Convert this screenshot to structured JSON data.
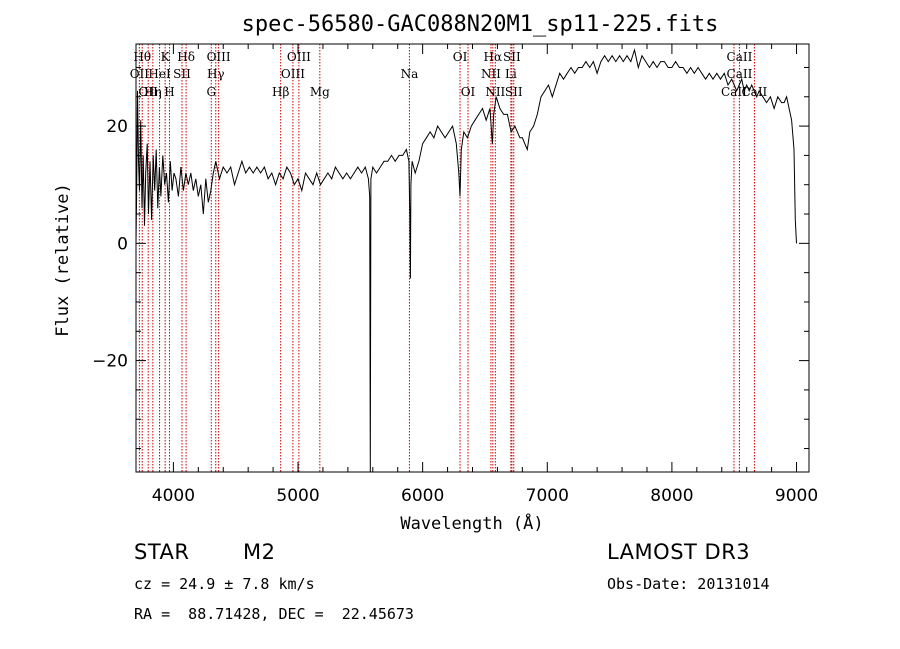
{
  "chart_data": {
    "type": "line",
    "title": "spec-56580-GAC088N20M1_sp11-225.fits",
    "xlabel": "Wavelength (Å)",
    "ylabel": "Flux (relative)",
    "xlim": [
      3700,
      9100
    ],
    "ylim": [
      -39,
      34
    ],
    "xticks": [
      4000,
      5000,
      6000,
      7000,
      8000,
      9000
    ],
    "yticks": [
      -20,
      0,
      20
    ],
    "grid": false,
    "series": [
      {
        "name": "spectrum",
        "points": [
          [
            3700,
            0
          ],
          [
            3705,
            8
          ],
          [
            3712,
            26
          ],
          [
            3720,
            14
          ],
          [
            3728,
            9
          ],
          [
            3738,
            21
          ],
          [
            3748,
            6
          ],
          [
            3758,
            15
          ],
          [
            3768,
            3
          ],
          [
            3778,
            12
          ],
          [
            3790,
            17
          ],
          [
            3800,
            5
          ],
          [
            3812,
            14
          ],
          [
            3825,
            4
          ],
          [
            3838,
            15
          ],
          [
            3850,
            9
          ],
          [
            3862,
            16
          ],
          [
            3875,
            6
          ],
          [
            3888,
            13
          ],
          [
            3900,
            8
          ],
          [
            3915,
            15
          ],
          [
            3930,
            10
          ],
          [
            3945,
            12
          ],
          [
            3960,
            7
          ],
          [
            3975,
            14
          ],
          [
            3990,
            9
          ],
          [
            4005,
            12
          ],
          [
            4020,
            11
          ],
          [
            4040,
            8
          ],
          [
            4060,
            13
          ],
          [
            4080,
            9
          ],
          [
            4100,
            12
          ],
          [
            4120,
            10
          ],
          [
            4140,
            12
          ],
          [
            4160,
            9
          ],
          [
            4180,
            11
          ],
          [
            4200,
            8
          ],
          [
            4220,
            10
          ],
          [
            4240,
            5
          ],
          [
            4260,
            11
          ],
          [
            4280,
            7
          ],
          [
            4300,
            9
          ],
          [
            4320,
            12
          ],
          [
            4340,
            14
          ],
          [
            4370,
            11
          ],
          [
            4400,
            13
          ],
          [
            4430,
            12
          ],
          [
            4460,
            13
          ],
          [
            4490,
            10
          ],
          [
            4520,
            12
          ],
          [
            4550,
            14
          ],
          [
            4580,
            12
          ],
          [
            4610,
            13
          ],
          [
            4640,
            12
          ],
          [
            4670,
            13
          ],
          [
            4700,
            12
          ],
          [
            4730,
            13
          ],
          [
            4760,
            11
          ],
          [
            4790,
            12
          ],
          [
            4820,
            10
          ],
          [
            4850,
            12
          ],
          [
            4880,
            11
          ],
          [
            4910,
            13
          ],
          [
            4940,
            12
          ],
          [
            4970,
            10
          ],
          [
            5000,
            11
          ],
          [
            5030,
            9
          ],
          [
            5060,
            12
          ],
          [
            5090,
            11
          ],
          [
            5120,
            10
          ],
          [
            5150,
            12
          ],
          [
            5180,
            10
          ],
          [
            5210,
            11
          ],
          [
            5240,
            12
          ],
          [
            5270,
            11
          ],
          [
            5300,
            13
          ],
          [
            5330,
            12
          ],
          [
            5360,
            11
          ],
          [
            5390,
            12
          ],
          [
            5420,
            11
          ],
          [
            5450,
            12
          ],
          [
            5480,
            13
          ],
          [
            5510,
            12
          ],
          [
            5540,
            13
          ],
          [
            5565,
            11
          ],
          [
            5575,
            8
          ],
          [
            5580,
            -39
          ],
          [
            5585,
            11
          ],
          [
            5600,
            13
          ],
          [
            5630,
            12
          ],
          [
            5660,
            13
          ],
          [
            5690,
            14
          ],
          [
            5720,
            14
          ],
          [
            5750,
            15
          ],
          [
            5780,
            14
          ],
          [
            5810,
            15
          ],
          [
            5840,
            15
          ],
          [
            5870,
            16
          ],
          [
            5890,
            14
          ],
          [
            5898,
            4
          ],
          [
            5902,
            -6
          ],
          [
            5906,
            10
          ],
          [
            5915,
            14
          ],
          [
            5940,
            12
          ],
          [
            5970,
            14
          ],
          [
            6000,
            17
          ],
          [
            6030,
            18
          ],
          [
            6060,
            19
          ],
          [
            6090,
            18
          ],
          [
            6120,
            20
          ],
          [
            6150,
            19
          ],
          [
            6180,
            18
          ],
          [
            6210,
            19
          ],
          [
            6240,
            20
          ],
          [
            6270,
            17
          ],
          [
            6290,
            12
          ],
          [
            6300,
            8
          ],
          [
            6310,
            16
          ],
          [
            6330,
            19
          ],
          [
            6360,
            18
          ],
          [
            6390,
            20
          ],
          [
            6420,
            21
          ],
          [
            6450,
            22
          ],
          [
            6480,
            23
          ],
          [
            6510,
            21
          ],
          [
            6540,
            23
          ],
          [
            6560,
            17
          ],
          [
            6570,
            22
          ],
          [
            6590,
            25
          ],
          [
            6620,
            23
          ],
          [
            6650,
            22
          ],
          [
            6680,
            22
          ],
          [
            6710,
            19
          ],
          [
            6740,
            20
          ],
          [
            6760,
            19
          ],
          [
            6780,
            18
          ],
          [
            6800,
            18
          ],
          [
            6820,
            17
          ],
          [
            6840,
            16
          ],
          [
            6860,
            19
          ],
          [
            6890,
            20
          ],
          [
            6920,
            22
          ],
          [
            6950,
            25
          ],
          [
            6980,
            26
          ],
          [
            7010,
            27
          ],
          [
            7040,
            25
          ],
          [
            7070,
            27
          ],
          [
            7100,
            29
          ],
          [
            7130,
            28
          ],
          [
            7160,
            29
          ],
          [
            7190,
            30
          ],
          [
            7220,
            29
          ],
          [
            7250,
            30
          ],
          [
            7280,
            30
          ],
          [
            7310,
            31
          ],
          [
            7340,
            30
          ],
          [
            7370,
            31
          ],
          [
            7400,
            29
          ],
          [
            7430,
            31
          ],
          [
            7460,
            32
          ],
          [
            7490,
            31
          ],
          [
            7520,
            32
          ],
          [
            7550,
            31
          ],
          [
            7580,
            32
          ],
          [
            7610,
            31
          ],
          [
            7640,
            32
          ],
          [
            7670,
            31
          ],
          [
            7700,
            33
          ],
          [
            7730,
            30
          ],
          [
            7760,
            32
          ],
          [
            7790,
            31
          ],
          [
            7820,
            30
          ],
          [
            7850,
            31
          ],
          [
            7880,
            30
          ],
          [
            7910,
            31
          ],
          [
            7940,
            31
          ],
          [
            7970,
            30
          ],
          [
            8000,
            30
          ],
          [
            8030,
            31
          ],
          [
            8060,
            30
          ],
          [
            8090,
            30
          ],
          [
            8120,
            29
          ],
          [
            8150,
            30
          ],
          [
            8180,
            29
          ],
          [
            8210,
            30
          ],
          [
            8240,
            29
          ],
          [
            8270,
            28
          ],
          [
            8300,
            29
          ],
          [
            8330,
            28
          ],
          [
            8360,
            29
          ],
          [
            8390,
            28
          ],
          [
            8420,
            29
          ],
          [
            8450,
            27
          ],
          [
            8480,
            28
          ],
          [
            8500,
            27
          ],
          [
            8520,
            26
          ],
          [
            8540,
            27
          ],
          [
            8560,
            28
          ],
          [
            8580,
            26
          ],
          [
            8600,
            27
          ],
          [
            8620,
            26
          ],
          [
            8640,
            27
          ],
          [
            8660,
            26
          ],
          [
            8680,
            25
          ],
          [
            8700,
            26
          ],
          [
            8730,
            25
          ],
          [
            8760,
            24
          ],
          [
            8790,
            25
          ],
          [
            8820,
            23
          ],
          [
            8850,
            25
          ],
          [
            8880,
            24
          ],
          [
            8900,
            24
          ],
          [
            8920,
            25
          ],
          [
            8940,
            23
          ],
          [
            8960,
            21
          ],
          [
            8980,
            16
          ],
          [
            8990,
            4
          ],
          [
            9000,
            0
          ]
        ]
      }
    ],
    "reference_lines": [
      {
        "wl": 3750,
        "label": "Hθ",
        "row": 1
      },
      {
        "wl": 3727,
        "label": "OII",
        "row": 2
      },
      {
        "wl": 3798,
        "label": "OII",
        "row": 3
      },
      {
        "wl": 3835,
        "label": "Hη",
        "row": 3
      },
      {
        "wl": 3889,
        "label": "HeI",
        "row": 2
      },
      {
        "wl": 3934,
        "label": "K",
        "row": 1
      },
      {
        "wl": 3969,
        "label": "H",
        "row": 3
      },
      {
        "wl": 4069,
        "label": "SII",
        "row": 2
      },
      {
        "wl": 4102,
        "label": "Hδ",
        "row": 1
      },
      {
        "wl": 4304,
        "label": "G",
        "row": 3
      },
      {
        "wl": 4340,
        "label": "Hγ",
        "row": 2
      },
      {
        "wl": 4363,
        "label": "OIII",
        "row": 1
      },
      {
        "wl": 4861,
        "label": "Hβ",
        "row": 3
      },
      {
        "wl": 4959,
        "label": "OIII",
        "row": 2
      },
      {
        "wl": 5007,
        "label": "OIII",
        "row": 1
      },
      {
        "wl": 5175,
        "label": "Mg",
        "row": 3
      },
      {
        "wl": 5894,
        "label": "Na",
        "row": 2
      },
      {
        "wl": 6300,
        "label": "OI",
        "row": 1
      },
      {
        "wl": 6364,
        "label": "OI",
        "row": 3
      },
      {
        "wl": 6548,
        "label": "NII",
        "row": 2
      },
      {
        "wl": 6563,
        "label": "Hα",
        "row": 1
      },
      {
        "wl": 6583,
        "label": "NII",
        "row": 3
      },
      {
        "wl": 6708,
        "label": "Li",
        "row": 2
      },
      {
        "wl": 6716,
        "label": "SII",
        "row": 1
      },
      {
        "wl": 6731,
        "label": "SII",
        "row": 3
      },
      {
        "wl": 8498,
        "label": "CaII",
        "row": 3
      },
      {
        "wl": 8542,
        "label": "CaII",
        "row": 1
      },
      {
        "wl": 8542,
        "label": "CaII",
        "row": 2
      },
      {
        "wl": 8662,
        "label": "CaII",
        "row": 3
      }
    ]
  },
  "info": {
    "object_class": "STAR",
    "subclass": "M2",
    "survey": "LAMOST DR3",
    "cz": "cz = 24.9 ± 7.8 km/s",
    "obs_date": "Obs-Date: 20131014",
    "coords": "RA =  88.71428, DEC =  22.45673"
  },
  "colors": {
    "spectrum": "#000000",
    "reference_line": "#cc0000",
    "frame": "#000000"
  }
}
